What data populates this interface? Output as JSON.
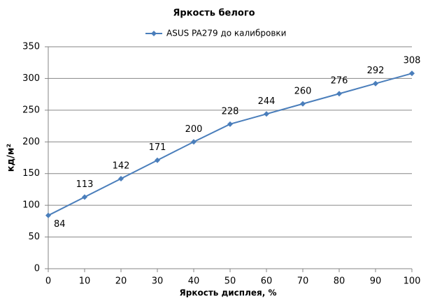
{
  "chart_data": {
    "type": "line",
    "title": "Яркость белого",
    "x_label": "Яркость дисплея, %",
    "y_label": "кд/м²",
    "x": [
      0,
      10,
      20,
      30,
      40,
      50,
      60,
      70,
      80,
      90,
      100
    ],
    "series": [
      {
        "name": "ASUS PA279 до калибровки",
        "color": "#4a7ebb",
        "values": [
          84,
          113,
          142,
          171,
          200,
          228,
          244,
          260,
          276,
          292,
          308
        ]
      }
    ],
    "xlim": [
      0,
      100
    ],
    "xticks": [
      0,
      10,
      20,
      30,
      40,
      50,
      60,
      70,
      80,
      90,
      100
    ],
    "ylim": [
      0,
      350
    ],
    "yticks": [
      0,
      50,
      100,
      150,
      200,
      250,
      300,
      350
    ],
    "grid": true,
    "legend": "top"
  }
}
